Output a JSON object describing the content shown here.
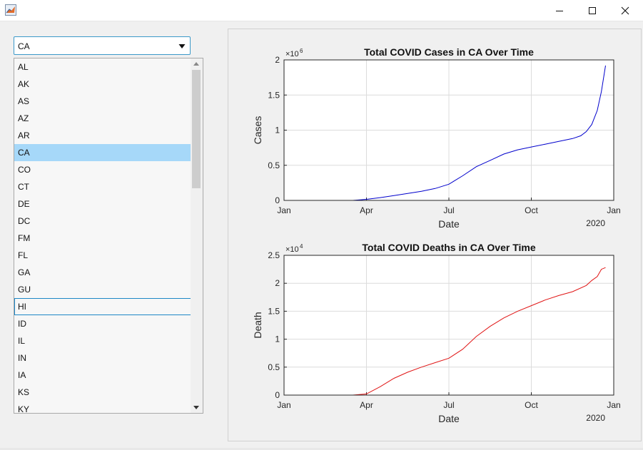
{
  "window": {
    "app_icon": "matlab-icon",
    "controls": [
      "minimize-icon",
      "maximize-icon",
      "close-icon"
    ]
  },
  "dropdown": {
    "selected": "CA",
    "options": [
      "AL",
      "AK",
      "AS",
      "AZ",
      "AR",
      "CA",
      "CO",
      "CT",
      "DE",
      "DC",
      "FM",
      "FL",
      "GA",
      "GU",
      "HI",
      "ID",
      "IL",
      "IN",
      "IA",
      "KS",
      "KY"
    ],
    "highlighted": "CA",
    "focused": "HI"
  },
  "colors": {
    "cases_line": "#0000cc",
    "deaths_line": "#e01414",
    "selection": "#a6d8f9",
    "focus_border": "#1e87c6"
  },
  "chart_data": [
    {
      "type": "line",
      "title": "Total COVID Cases in CA Over Time",
      "xlabel": "Date",
      "ylabel": "Cases",
      "y_exponent": "×10",
      "y_exponent_power": "6",
      "xticks": [
        "Jan",
        "Apr",
        "Jul",
        "Oct",
        "Jan"
      ],
      "x_secondary_label": "2020",
      "yticks": [
        "0",
        "0.5",
        "1",
        "1.5",
        "2"
      ],
      "ylim": [
        0,
        2
      ],
      "xlim_months": [
        0,
        12
      ],
      "grid": true,
      "series": [
        {
          "color": "#0000cc",
          "x": [
            0.85,
            2.0,
            2.5,
            3.0,
            3.5,
            4.0,
            4.5,
            5.0,
            5.5,
            6.0,
            6.5,
            7.0,
            7.5,
            8.0,
            8.5,
            9.0,
            9.5,
            10.0,
            10.5,
            10.8,
            11.0,
            11.2,
            11.4,
            11.55,
            11.7
          ],
          "y": [
            0,
            0,
            0.0003,
            0.015,
            0.04,
            0.068,
            0.1,
            0.13,
            0.17,
            0.23,
            0.35,
            0.48,
            0.57,
            0.66,
            0.72,
            0.76,
            0.8,
            0.84,
            0.88,
            0.92,
            0.98,
            1.08,
            1.28,
            1.55,
            1.92
          ]
        }
      ]
    },
    {
      "type": "line",
      "title": "Total COVID Deaths in CA Over Time",
      "xlabel": "Date",
      "ylabel": "Death",
      "y_exponent": "×10",
      "y_exponent_power": "4",
      "xticks": [
        "Jan",
        "Apr",
        "Jul",
        "Oct",
        "Jan"
      ],
      "x_secondary_label": "2020",
      "yticks": [
        "0",
        "0.5",
        "1",
        "1.5",
        "2",
        "2.5"
      ],
      "ylim": [
        0,
        2.5
      ],
      "xlim_months": [
        0,
        12
      ],
      "grid": true,
      "series": [
        {
          "color": "#e01414",
          "x": [
            0.85,
            2.5,
            3.0,
            3.5,
            4.0,
            4.5,
            5.0,
            5.5,
            6.0,
            6.5,
            7.0,
            7.5,
            8.0,
            8.5,
            9.0,
            9.5,
            10.0,
            10.5,
            11.0,
            11.2,
            11.4,
            11.55,
            11.7
          ],
          "y": [
            0,
            0,
            0.02,
            0.15,
            0.3,
            0.41,
            0.5,
            0.58,
            0.66,
            0.82,
            1.05,
            1.23,
            1.38,
            1.5,
            1.6,
            1.7,
            1.78,
            1.85,
            1.96,
            2.05,
            2.12,
            2.25,
            2.28
          ]
        }
      ]
    }
  ]
}
